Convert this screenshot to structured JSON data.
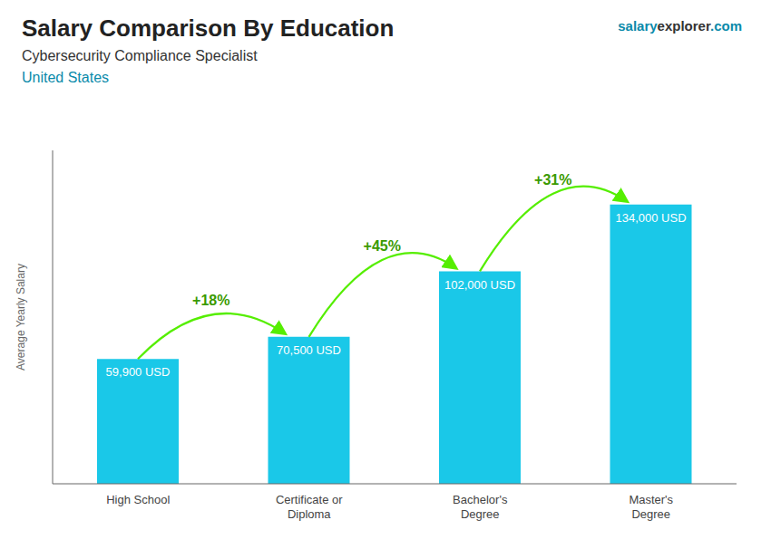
{
  "chart_data": {
    "type": "bar",
    "title": "Salary Comparison By Education",
    "subtitle": [
      "Cybersecurity Compliance Specialist",
      "United States"
    ],
    "ylabel": "Average Yearly Salary",
    "categories": [
      "High School",
      "Certificate or\nDiploma",
      "Bachelor's\nDegree",
      "Master's\nDegree"
    ],
    "values": [
      59900,
      70500,
      102000,
      134000
    ],
    "value_labels": [
      "59,900 USD",
      "70,500 USD",
      "102,000 USD",
      "134,000 USD"
    ],
    "data_labels": true,
    "color": "#1ac8e8",
    "ylim": [
      0,
      160000
    ],
    "tick_labels": "x",
    "grid": false,
    "annotations": {
      "watermark": [
        "salary",
        "explorer",
        ".com"
      ],
      "changes": [
        "+18%",
        "+45%",
        "+31%"
      ]
    }
  }
}
